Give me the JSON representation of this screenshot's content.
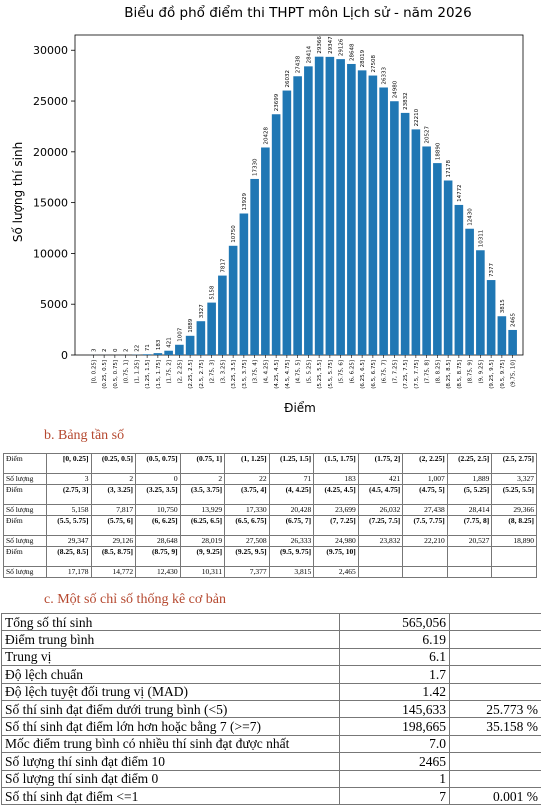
{
  "chart_data": {
    "type": "bar",
    "title": "Biểu đồ phổ điểm thi THPT môn Lịch sử - năm 2026",
    "xlabel": "Điểm",
    "ylabel": "Số lượng thí sinh",
    "categories": [
      "[0, 0.25]",
      "(0.25, 0.5]",
      "(0.5, 0.75]",
      "(0.75, 1]",
      "(1, 1.25]",
      "(1.25, 1.5]",
      "(1.5, 1.75]",
      "(1.75, 2]",
      "(2, 2.25]",
      "(2.25, 2.5]",
      "(2.5, 2.75]",
      "(2.75, 3]",
      "(3, 3.25]",
      "(3.25, 3.5]",
      "(3.5, 3.75]",
      "(3.75, 4]",
      "(4, 4.25]",
      "(4.25, 4.5]",
      "(4.5, 4.75]",
      "(4.75, 5]",
      "(5, 5.25]",
      "(5.25, 5.5]",
      "(5.5, 5.75]",
      "(5.75, 6]",
      "(6, 6.25]",
      "(6.25, 6.5]",
      "(6.5, 6.75]",
      "(6.75, 7]",
      "(7, 7.25]",
      "(7.25, 7.5]",
      "(7.5, 7.75]",
      "(7.75, 8]",
      "(8, 8.25]",
      "(8.25, 8.5]",
      "(8.5, 8.75]",
      "(8.75, 9]",
      "(9, 9.25]",
      "(9.25, 9.5]",
      "(9.5, 9.75]",
      "(9.75, 10]"
    ],
    "values": [
      3,
      2,
      0,
      2,
      22,
      71,
      183,
      421,
      1007,
      1889,
      3327,
      5158,
      7817,
      10750,
      13929,
      17330,
      20428,
      23699,
      26032,
      27438,
      28414,
      29366,
      29347,
      29126,
      28648,
      28019,
      27508,
      26333,
      24980,
      23832,
      22210,
      20527,
      18890,
      17178,
      14772,
      12430,
      10311,
      7377,
      3815,
      2465
    ],
    "color": "#1f77b4",
    "ylim": [
      0,
      31500
    ],
    "yticks": [
      0,
      5000,
      10000,
      15000,
      20000,
      25000,
      30000
    ],
    "grid": false
  },
  "section_b": {
    "heading": "b.  Bảng tần số",
    "rows": [
      [
        "Điểm",
        "[0, 0.25]",
        "(0.25, 0.5]",
        "(0.5, 0.75]",
        "(0.75, 1]",
        "(1, 1.25]",
        "(1.25, 1.5]",
        "(1.5, 1.75]",
        "(1.75, 2]",
        "(2, 2.25]",
        "(2.25, 2.5]",
        "(2.5, 2.75]"
      ],
      [
        "Số lượng",
        "3",
        "2",
        "0",
        "2",
        "22",
        "71",
        "183",
        "421",
        "1,007",
        "1,889",
        "3,327"
      ],
      [
        "Điểm",
        "(2.75, 3]",
        "(3, 3.25]",
        "(3.25, 3.5]",
        "(3.5, 3.75]",
        "(3.75, 4]",
        "(4, 4.25]",
        "(4.25, 4.5]",
        "(4.5, 4.75]",
        "(4.75, 5]",
        "(5, 5.25]",
        "(5.25, 5.5]"
      ],
      [
        "Số lượng",
        "5,158",
        "7,817",
        "10,750",
        "13,929",
        "17,330",
        "20,428",
        "23,699",
        "26,032",
        "27,438",
        "28,414",
        "29,366"
      ],
      [
        "Điểm",
        "(5.5, 5.75]",
        "(5.75, 6]",
        "(6, 6.25]",
        "(6.25, 6.5]",
        "(6.5, 6.75]",
        "(6.75, 7]",
        "(7, 7.25]",
        "(7.25, 7.5]",
        "(7.5, 7.75]",
        "(7.75, 8]",
        "(8, 8.25]"
      ],
      [
        "Số lượng",
        "29,347",
        "29,126",
        "28,648",
        "28,019",
        "27,508",
        "26,333",
        "24,980",
        "23,832",
        "22,210",
        "20,527",
        "18,890"
      ],
      [
        "Điểm",
        "(8.25, 8.5]",
        "(8.5, 8.75]",
        "(8.75, 9]",
        "(9, 9.25]",
        "(9.25, 9.5]",
        "(9.5, 9.75]",
        "(9.75, 10]"
      ],
      [
        "Số lượng",
        "17,178",
        "14,772",
        "12,430",
        "10,311",
        "7,377",
        "3,815",
        "2,465"
      ]
    ]
  },
  "section_c": {
    "heading": "c.  Một số chỉ số thống kê cơ bản",
    "rows": [
      [
        "Tổng số thí sinh",
        "565,056"
      ],
      [
        "Điểm trung bình",
        "6.19"
      ],
      [
        "Trung vị",
        "6.1"
      ],
      [
        "Độ lệch chuẩn",
        "1.7"
      ],
      [
        "Độ lệch tuyệt đối trung vị (MAD)",
        "1.42"
      ],
      [
        "Số thí sinh đạt điểm dưới trung bình (<5)",
        "145,633",
        "25.773 %"
      ],
      [
        "Số thí sinh đạt điểm lớn hơn hoặc bằng 7 (>=7)",
        "198,665",
        "35.158 %"
      ],
      [
        "Mốc điểm trung bình có nhiều thí sinh đạt được nhất",
        "7.0"
      ],
      [
        "Số lượng thí sinh đạt điểm 10",
        "2465"
      ],
      [
        "Số lượng thí sinh đạt điểm 0",
        "1"
      ],
      [
        "Số thí sinh đạt điểm <=1",
        "7",
        "0.001 %"
      ]
    ]
  }
}
